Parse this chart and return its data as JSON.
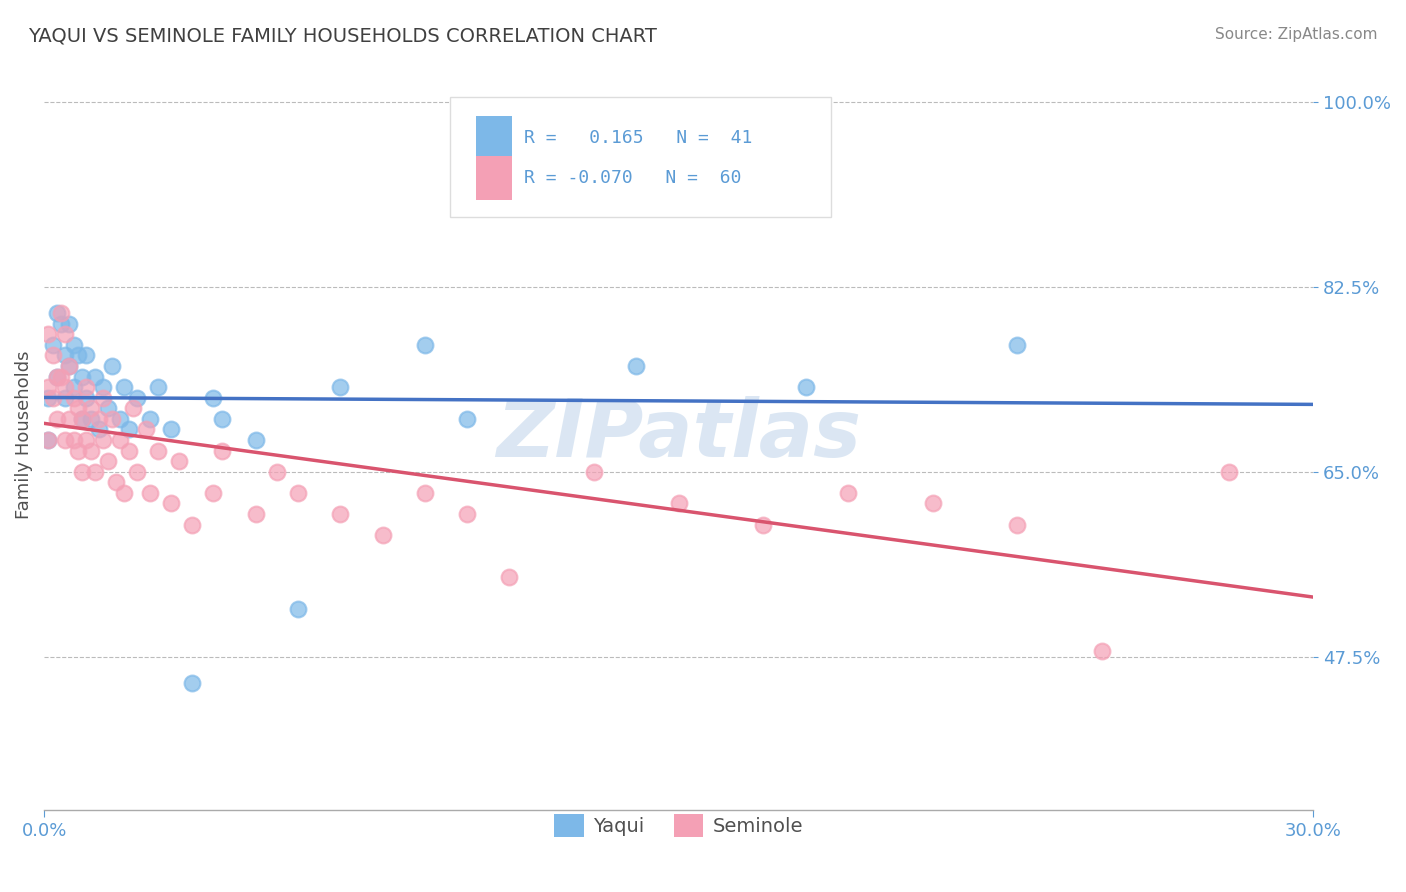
{
  "title": "YAQUI VS SEMINOLE FAMILY HOUSEHOLDS CORRELATION CHART",
  "source_text": "Source: ZipAtlas.com",
  "xlabel_yaqui": "Yaqui",
  "xlabel_seminole": "Seminole",
  "ylabel": "Family Households",
  "xlim": [
    0.0,
    0.3
  ],
  "ylim": [
    0.33,
    1.04
  ],
  "yticks": [
    0.475,
    0.65,
    0.825,
    1.0
  ],
  "ytick_labels": [
    "47.5%",
    "65.0%",
    "82.5%",
    "100.0%"
  ],
  "xtick_labels": [
    "0.0%",
    "30.0%"
  ],
  "xtick_vals": [
    0.0,
    0.3
  ],
  "yaqui_color": "#7db8e8",
  "seminole_color": "#f4a0b5",
  "yaqui_line_color": "#4472c4",
  "seminole_line_color": "#d9546e",
  "watermark": "ZIPatlas",
  "background_color": "#ffffff",
  "grid_color": "#bbbbbb",
  "title_color": "#404040",
  "axis_label_color": "#505050",
  "tick_label_color": "#5b9bd5",
  "legend_box_color": "#dddddd",
  "R_yaqui": 0.165,
  "N_yaqui": 41,
  "R_seminole": -0.07,
  "N_seminole": 60,
  "yaqui_scatter": {
    "x": [
      0.001,
      0.001,
      0.002,
      0.003,
      0.003,
      0.004,
      0.005,
      0.005,
      0.006,
      0.006,
      0.007,
      0.007,
      0.008,
      0.009,
      0.009,
      0.01,
      0.01,
      0.011,
      0.012,
      0.013,
      0.014,
      0.015,
      0.016,
      0.018,
      0.019,
      0.02,
      0.022,
      0.025,
      0.027,
      0.03,
      0.035,
      0.04,
      0.042,
      0.05,
      0.06,
      0.07,
      0.09,
      0.1,
      0.14,
      0.18,
      0.23
    ],
    "y": [
      0.68,
      0.72,
      0.77,
      0.8,
      0.74,
      0.79,
      0.72,
      0.76,
      0.75,
      0.79,
      0.73,
      0.77,
      0.76,
      0.7,
      0.74,
      0.72,
      0.76,
      0.7,
      0.74,
      0.69,
      0.73,
      0.71,
      0.75,
      0.7,
      0.73,
      0.69,
      0.72,
      0.7,
      0.73,
      0.69,
      0.45,
      0.72,
      0.7,
      0.68,
      0.52,
      0.73,
      0.77,
      0.7,
      0.75,
      0.73,
      0.77
    ]
  },
  "seminole_scatter": {
    "x": [
      0.001,
      0.001,
      0.001,
      0.002,
      0.002,
      0.003,
      0.003,
      0.004,
      0.004,
      0.005,
      0.005,
      0.005,
      0.006,
      0.006,
      0.007,
      0.007,
      0.008,
      0.008,
      0.009,
      0.009,
      0.01,
      0.01,
      0.011,
      0.011,
      0.012,
      0.013,
      0.014,
      0.014,
      0.015,
      0.016,
      0.017,
      0.018,
      0.019,
      0.02,
      0.021,
      0.022,
      0.024,
      0.025,
      0.027,
      0.03,
      0.032,
      0.035,
      0.04,
      0.042,
      0.05,
      0.055,
      0.06,
      0.07,
      0.08,
      0.09,
      0.1,
      0.11,
      0.13,
      0.15,
      0.17,
      0.19,
      0.21,
      0.23,
      0.25,
      0.28
    ],
    "y": [
      0.68,
      0.73,
      0.78,
      0.72,
      0.76,
      0.7,
      0.74,
      0.8,
      0.74,
      0.68,
      0.73,
      0.78,
      0.7,
      0.75,
      0.68,
      0.72,
      0.67,
      0.71,
      0.65,
      0.7,
      0.68,
      0.73,
      0.67,
      0.71,
      0.65,
      0.7,
      0.68,
      0.72,
      0.66,
      0.7,
      0.64,
      0.68,
      0.63,
      0.67,
      0.71,
      0.65,
      0.69,
      0.63,
      0.67,
      0.62,
      0.66,
      0.6,
      0.63,
      0.67,
      0.61,
      0.65,
      0.63,
      0.61,
      0.59,
      0.63,
      0.61,
      0.55,
      0.65,
      0.62,
      0.6,
      0.63,
      0.62,
      0.6,
      0.48,
      0.65
    ]
  }
}
